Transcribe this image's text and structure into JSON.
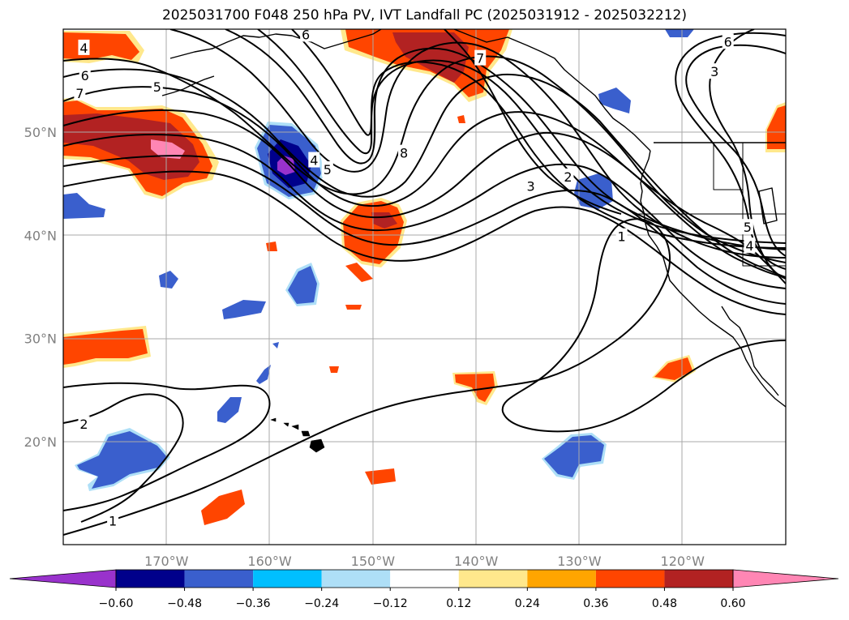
{
  "title": "2025031700 F048 250 hPa PV, IVT Landfall PC (2025031912 - 2025032212)",
  "map": {
    "lon_range": [
      -180,
      -110
    ],
    "lat_range": [
      10,
      60
    ],
    "lon_ticks": [
      {
        "value": -170,
        "label": "170°W"
      },
      {
        "value": -160,
        "label": "160°W"
      },
      {
        "value": -150,
        "label": "150°W"
      },
      {
        "value": -140,
        "label": "140°W"
      },
      {
        "value": -130,
        "label": "130°W"
      },
      {
        "value": -120,
        "label": "120°W"
      }
    ],
    "lat_ticks": [
      {
        "value": 20,
        "label": "20°N"
      },
      {
        "value": 30,
        "label": "30°N"
      },
      {
        "value": 40,
        "label": "40°N"
      },
      {
        "value": 50,
        "label": "50°N"
      }
    ],
    "grid": true,
    "contour_labels": [
      {
        "text": "4",
        "lon": -178.0,
        "lat": 58.2
      },
      {
        "text": "6",
        "lon": -177.9,
        "lat": 55.5
      },
      {
        "text": "7",
        "lon": -178.4,
        "lat": 53.8
      },
      {
        "text": "5",
        "lon": -170.9,
        "lat": 54.4
      },
      {
        "text": "6",
        "lon": -156.5,
        "lat": 59.5
      },
      {
        "text": "4",
        "lon": -155.7,
        "lat": 47.3
      },
      {
        "text": "5",
        "lon": -154.4,
        "lat": 46.4
      },
      {
        "text": "8",
        "lon": -147.0,
        "lat": 48.0
      },
      {
        "text": "7",
        "lon": -139.6,
        "lat": 57.2
      },
      {
        "text": "3",
        "lon": -134.7,
        "lat": 44.8
      },
      {
        "text": "2",
        "lon": -131.1,
        "lat": 45.7
      },
      {
        "text": "1",
        "lon": -125.9,
        "lat": 39.9
      },
      {
        "text": "6",
        "lon": -115.6,
        "lat": 58.8
      },
      {
        "text": "3",
        "lon": -116.9,
        "lat": 55.9
      },
      {
        "text": "5",
        "lon": -113.7,
        "lat": 40.8
      },
      {
        "text": "4",
        "lon": -113.5,
        "lat": 39.0
      },
      {
        "text": "2",
        "lon": -178.0,
        "lat": 21.7
      },
      {
        "text": "1",
        "lon": -175.2,
        "lat": 12.3
      }
    ],
    "colors": {
      "ocean": "#ffffff",
      "coastline": "#000000",
      "contour": "#000000",
      "gridline": "#a9a9a9",
      "pos1": "#ffe88c",
      "pos2": "#ffa500",
      "pos3": "#ff4500",
      "pos4": "#b22222",
      "pos5": "#ff86b4",
      "neg1": "#aedff7",
      "neg2": "#00bfff",
      "neg3": "#3a5fcd",
      "neg4": "#00008b",
      "neg5": "#9932cc"
    }
  },
  "colorbar": {
    "colors": [
      "#9932cc",
      "#00008b",
      "#3a5fcd",
      "#00bfff",
      "#aedff7",
      "#ffffff",
      "#ffe88c",
      "#ffa500",
      "#ff4500",
      "#b22222",
      "#ff86b4"
    ],
    "boundaries": [
      -0.6,
      -0.48,
      -0.36,
      -0.24,
      -0.12,
      0.12,
      0.24,
      0.36,
      0.48,
      0.6
    ],
    "tick_labels": [
      "−0.60",
      "−0.48",
      "−0.36",
      "−0.24",
      "−0.12",
      "0.12",
      "0.24",
      "0.36",
      "0.48",
      "0.60"
    ],
    "extend": "both"
  }
}
